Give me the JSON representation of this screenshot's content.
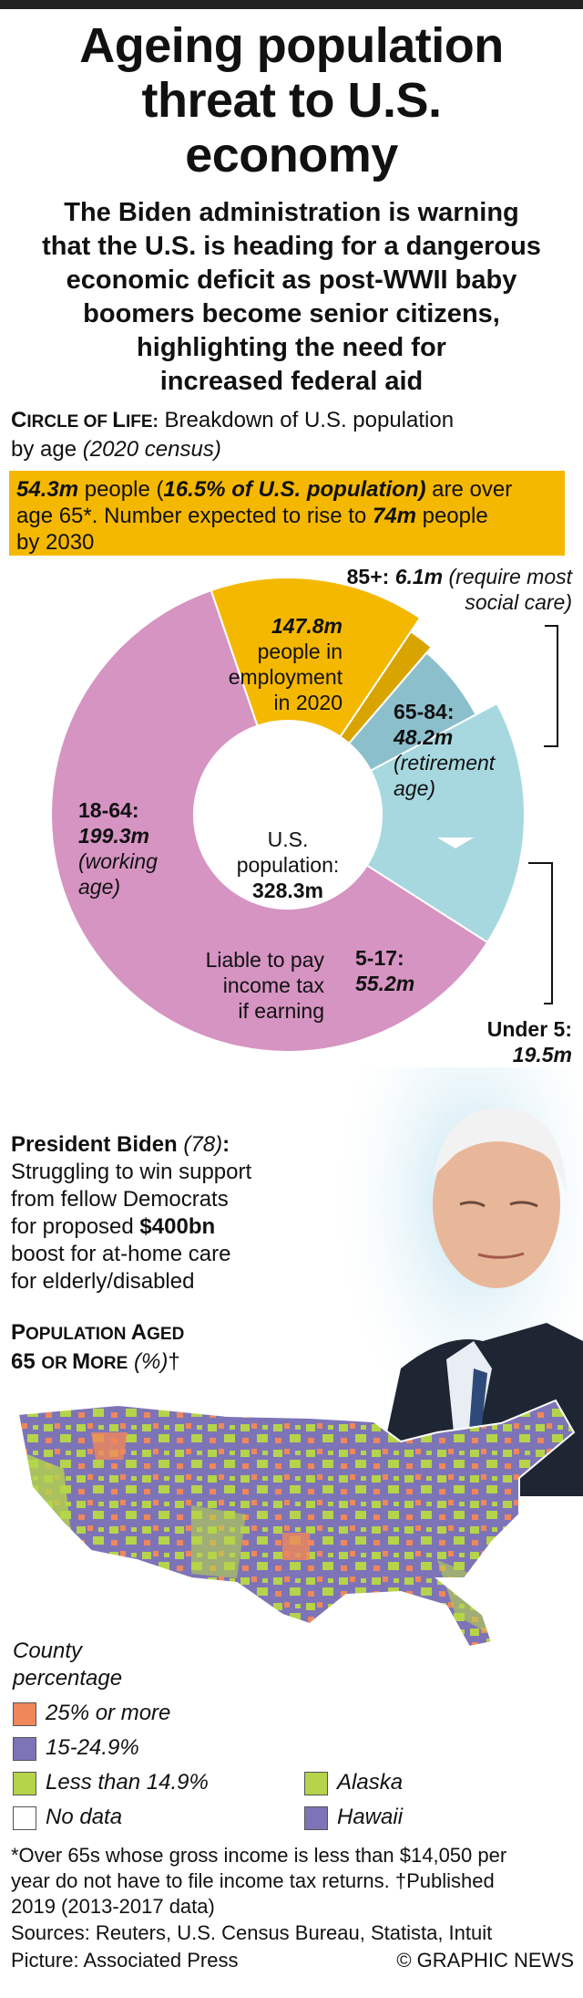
{
  "title_lines": [
    "Ageing population",
    "threat to U.S.",
    "economy"
  ],
  "subtitle_lines": [
    "The Biden administration is warning",
    "that the U.S. is heading for a dangerous",
    "economic deficit as post-WWII baby",
    "boomers become senior citizens,",
    "highlighting the need for",
    "increased federal aid"
  ],
  "circle_section": {
    "heading_c": "C",
    "heading_rest": "IRCLE OF ",
    "heading_l": "L",
    "heading_rest2": "IFE:",
    "heading_text": " Breakdown of U.S. population",
    "heading_line2": "by age ",
    "heading_note": "(2020 census)"
  },
  "banner": {
    "count": "54.3m",
    "text1": " people (",
    "share": "16.5% of U.S. population)",
    "text2": " are over",
    "text3": "age 65*. Number expected to rise to ",
    "future": "74m",
    "text4": " people",
    "text5": "by 2030"
  },
  "chart_data": {
    "type": "pie",
    "center_line1": "U.S.",
    "center_line2": "population:",
    "center_total": "328.3m",
    "total": 328.3,
    "segments": [
      {
        "name": "18-64",
        "value": 199.3,
        "color": "#d694c2"
      },
      {
        "name": "65-84",
        "value": 48.2,
        "color": "#f5b800"
      },
      {
        "name": "85+",
        "value": 6.1,
        "color": "#d9a300"
      },
      {
        "name": "Under 5",
        "value": 19.5,
        "color": "#8cbfcc"
      },
      {
        "name": "5-17",
        "value": 55.2,
        "color": "#a7d8e0"
      }
    ],
    "labels": {
      "working_name": "18-64:",
      "working_value": "199.3m",
      "working_note1": "(working",
      "working_note2": "age)",
      "employment_value": "147.8m",
      "employment_text1": "people in",
      "employment_text2": "employment",
      "employment_text3": "in 2020",
      "retire_name": "65-84:",
      "retire_value": "48.2m",
      "retire_note1": "(retirement",
      "retire_note2": "age)",
      "old_name": "85+:",
      "old_value": "6.1m",
      "old_note1": "(require most",
      "old_note2": "social care)",
      "child_name": "5-17:",
      "child_value": "55.2m",
      "under5_name": "Under 5:",
      "under5_value": "19.5m",
      "tax_line1": "Liable to pay",
      "tax_line2": "income tax",
      "tax_line3": "if earning"
    }
  },
  "biden": {
    "name": "President Biden",
    "age": " (78)",
    "colon": ":",
    "line2": "Struggling to win support",
    "line3": "from fellow Democrats",
    "line4a": "for proposed ",
    "amount": "$400bn",
    "line5": "boost for at-home care",
    "line6": "for elderly/disabled"
  },
  "map_section": {
    "heading1_p": "P",
    "heading1_rest": "OPULATION ",
    "heading1_a": "A",
    "heading1_rest2": "GED",
    "heading2_65": "65 ",
    "heading2_o": "OR ",
    "heading2_m": "M",
    "heading2_rest": "ORE",
    "heading2_unit": " (%)",
    "heading2_dagger": "†"
  },
  "legend": {
    "title1": "County",
    "title2": "percentage",
    "items": [
      {
        "label": "25% or more",
        "color": "#f0875a"
      },
      {
        "label": "15-24.9%",
        "color": "#7d74b8"
      },
      {
        "label": "Less than 14.9%",
        "color": "#b5d44a"
      },
      {
        "label": "No data",
        "color": "#ffffff"
      }
    ],
    "states": [
      {
        "label": "Alaska",
        "color": "#b5d44a"
      },
      {
        "label": "Hawaii",
        "color": "#7d74b8"
      }
    ]
  },
  "footnote_lines": [
    "*Over 65s whose gross income is less than $14,050 per",
    "year do not have to file income tax returns. †Published",
    "2019 (2013-2017 data)"
  ],
  "sources": "Sources: Reuters, U.S. Census Bureau, Statista, Intuit",
  "picture": "Picture: Associated Press",
  "credit": "© GRAPHIC NEWS"
}
